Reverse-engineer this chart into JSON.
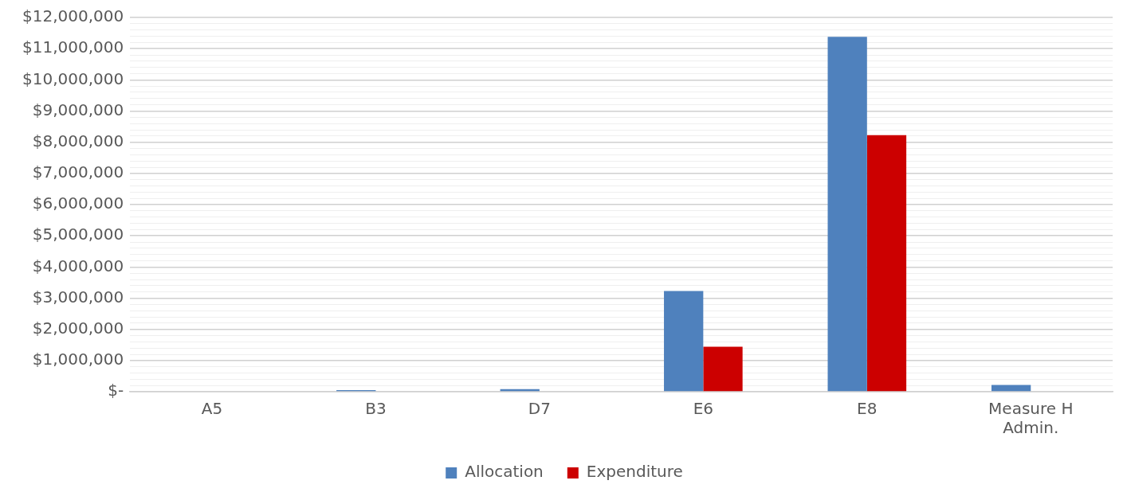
{
  "chart_data": {
    "type": "bar",
    "categories": [
      "A5",
      "B3",
      "D7",
      "E6",
      "E8",
      "Measure H Admin."
    ],
    "series": [
      {
        "name": "Allocation",
        "color": "#4f81bd",
        "values": [
          null,
          50000,
          80000,
          3230000,
          11380000,
          220000
        ]
      },
      {
        "name": "Expenditure",
        "color": "#cc0000",
        "values": [
          0,
          0,
          0,
          1440000,
          8230000,
          0
        ]
      }
    ],
    "ylim": [
      0,
      12000000
    ],
    "yticks": [
      {
        "value": 0,
        "label": "$-"
      },
      {
        "value": 200000,
        "label": null
      },
      {
        "value": 400000,
        "label": null
      },
      {
        "value": 600000,
        "label": null
      },
      {
        "value": 800000,
        "label": null
      },
      {
        "value": 1000000,
        "label": "$1,000,000"
      },
      {
        "value": 1200000,
        "label": null
      },
      {
        "value": 1400000,
        "label": null
      },
      {
        "value": 1600000,
        "label": null
      },
      {
        "value": 1800000,
        "label": null
      },
      {
        "value": 2000000,
        "label": "$2,000,000"
      },
      {
        "value": 2200000,
        "label": null
      },
      {
        "value": 2400000,
        "label": null
      },
      {
        "value": 2600000,
        "label": null
      },
      {
        "value": 2800000,
        "label": null
      },
      {
        "value": 3000000,
        "label": "$3,000,000"
      },
      {
        "value": 3200000,
        "label": null
      },
      {
        "value": 3400000,
        "label": null
      },
      {
        "value": 3600000,
        "label": null
      },
      {
        "value": 3800000,
        "label": null
      },
      {
        "value": 4000000,
        "label": "$4,000,000"
      },
      {
        "value": 4200000,
        "label": null
      },
      {
        "value": 4400000,
        "label": null
      },
      {
        "value": 4600000,
        "label": null
      },
      {
        "value": 4800000,
        "label": null
      },
      {
        "value": 5000000,
        "label": "$5,000,000"
      },
      {
        "value": 5200000,
        "label": null
      },
      {
        "value": 5400000,
        "label": null
      },
      {
        "value": 5600000,
        "label": null
      },
      {
        "value": 5800000,
        "label": null
      },
      {
        "value": 6000000,
        "label": "$6,000,000"
      },
      {
        "value": 6200000,
        "label": null
      },
      {
        "value": 6400000,
        "label": null
      },
      {
        "value": 6600000,
        "label": null
      },
      {
        "value": 6800000,
        "label": null
      },
      {
        "value": 7000000,
        "label": "$7,000,000"
      },
      {
        "value": 7200000,
        "label": null
      },
      {
        "value": 7400000,
        "label": null
      },
      {
        "value": 7600000,
        "label": null
      },
      {
        "value": 7800000,
        "label": null
      },
      {
        "value": 8000000,
        "label": "$8,000,000"
      },
      {
        "value": 8200000,
        "label": null
      },
      {
        "value": 8400000,
        "label": null
      },
      {
        "value": 8600000,
        "label": null
      },
      {
        "value": 8800000,
        "label": null
      },
      {
        "value": 9000000,
        "label": "$9,000,000"
      },
      {
        "value": 9200000,
        "label": null
      },
      {
        "value": 9400000,
        "label": null
      },
      {
        "value": 9600000,
        "label": null
      },
      {
        "value": 9800000,
        "label": null
      },
      {
        "value": 10000000,
        "label": "$10,000,000"
      },
      {
        "value": 10200000,
        "label": null
      },
      {
        "value": 10400000,
        "label": null
      },
      {
        "value": 10600000,
        "label": null
      },
      {
        "value": 10800000,
        "label": null
      },
      {
        "value": 11000000,
        "label": "$11,000,000"
      },
      {
        "value": 11200000,
        "label": null
      },
      {
        "value": 11400000,
        "label": null
      },
      {
        "value": 11600000,
        "label": null
      },
      {
        "value": 11800000,
        "label": null
      },
      {
        "value": 12000000,
        "label": "$12,000,000"
      }
    ],
    "grid": "y",
    "legend": "bottom"
  }
}
